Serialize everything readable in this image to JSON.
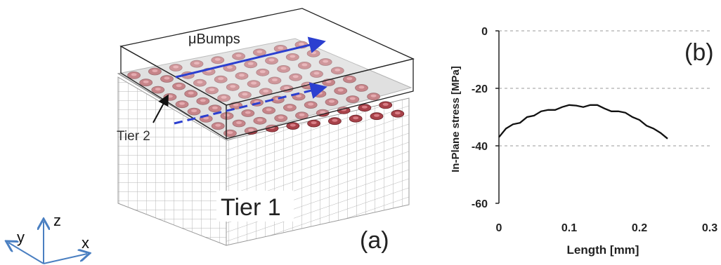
{
  "panel_a": {
    "label_bumps": "μBumps",
    "label_tier2": "Tier 2",
    "label_tier1": "Tier 1",
    "panel_label": "(a)",
    "axis_z": "z",
    "axis_y": "y",
    "axis_x": "x",
    "arrow_color": "#2b3fd0",
    "bump_color": "#a8424a",
    "axes_color": "#4a7fc1"
  },
  "panel_b": {
    "panel_label": "(b)"
  },
  "chart_data": {
    "type": "line",
    "title": "",
    "xlabel": "Length [mm]",
    "ylabel": "In-Plane stress [MPa]",
    "xlim": [
      0,
      0.3
    ],
    "ylim": [
      -60,
      0
    ],
    "xticks": [
      "0",
      "0.1",
      "0.2",
      "0.3"
    ],
    "yticks": [
      "0",
      "-20",
      "-40",
      "-60"
    ],
    "xtick_values": [
      0,
      0.1,
      0.2,
      0.3
    ],
    "ytick_values": [
      0,
      -20,
      -40,
      -60
    ],
    "grid": "dashed horizontal at y = 0, -20, -40",
    "series": [
      {
        "x": [
          0,
          0.01,
          0.02,
          0.03,
          0.04,
          0.05,
          0.06,
          0.07,
          0.08,
          0.09,
          0.1,
          0.11,
          0.12,
          0.13,
          0.14,
          0.15,
          0.16,
          0.17,
          0.18,
          0.19,
          0.2,
          0.21,
          0.22,
          0.23,
          0.24
        ],
        "y": [
          -37,
          -34,
          -32.5,
          -32,
          -30,
          -29.5,
          -28,
          -27.5,
          -27.5,
          -26.5,
          -25.8,
          -26,
          -26.5,
          -25.8,
          -25.8,
          -27,
          -28,
          -28,
          -28.5,
          -30,
          -31,
          -33,
          -34,
          -35.5,
          -37.5
        ]
      }
    ]
  }
}
